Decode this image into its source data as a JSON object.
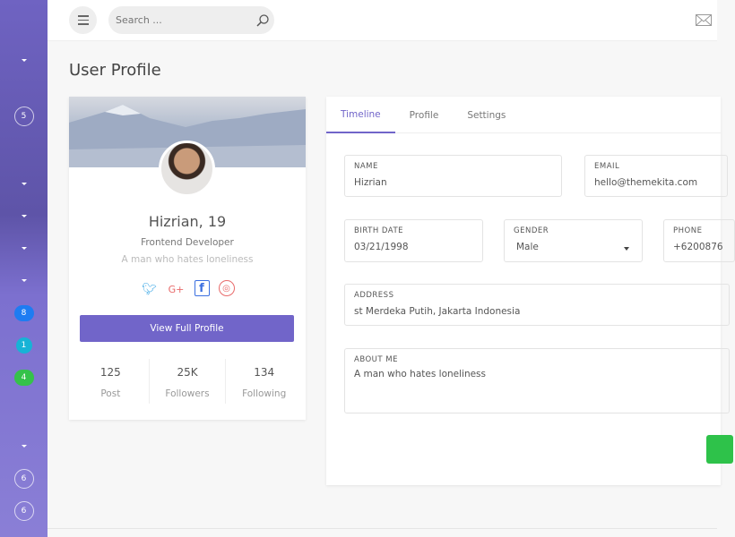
{
  "sidebar": {
    "badges": {
      "a": "5",
      "b": "8",
      "c": "1",
      "d": "4",
      "e": "6",
      "f": "6"
    },
    "colors": {
      "blue": "#1e7cf2",
      "cyan": "#17b3d6",
      "green": "#35c24a"
    }
  },
  "topbar": {
    "search_placeholder": "Search ..."
  },
  "page": {
    "title": "User Profile"
  },
  "profile": {
    "name": "Hizrian, 19",
    "role": "Frontend Developer",
    "bio": "A man who hates loneliness",
    "view_button": "View Full Profile",
    "stats": [
      {
        "value": "125",
        "label": "Post"
      },
      {
        "value": "25K",
        "label": "Followers"
      },
      {
        "value": "134",
        "label": "Following"
      }
    ]
  },
  "tabs": [
    {
      "label": "Timeline"
    },
    {
      "label": "Profile"
    },
    {
      "label": "Settings"
    }
  ],
  "form": {
    "name": {
      "label": "NAME",
      "value": "Hizrian"
    },
    "email": {
      "label": "EMAIL",
      "value": "hello@themekita.com"
    },
    "birth": {
      "label": "BIRTH DATE",
      "value": "03/21/1998"
    },
    "gender": {
      "label": "GENDER",
      "value": "Male"
    },
    "phone": {
      "label": "PHONE",
      "value": "+6200876"
    },
    "address": {
      "label": "ADDRESS",
      "value": "st Merdeka Putih, Jakarta Indonesia"
    },
    "about": {
      "label": "ABOUT ME",
      "value": "A man who hates loneliness"
    }
  }
}
